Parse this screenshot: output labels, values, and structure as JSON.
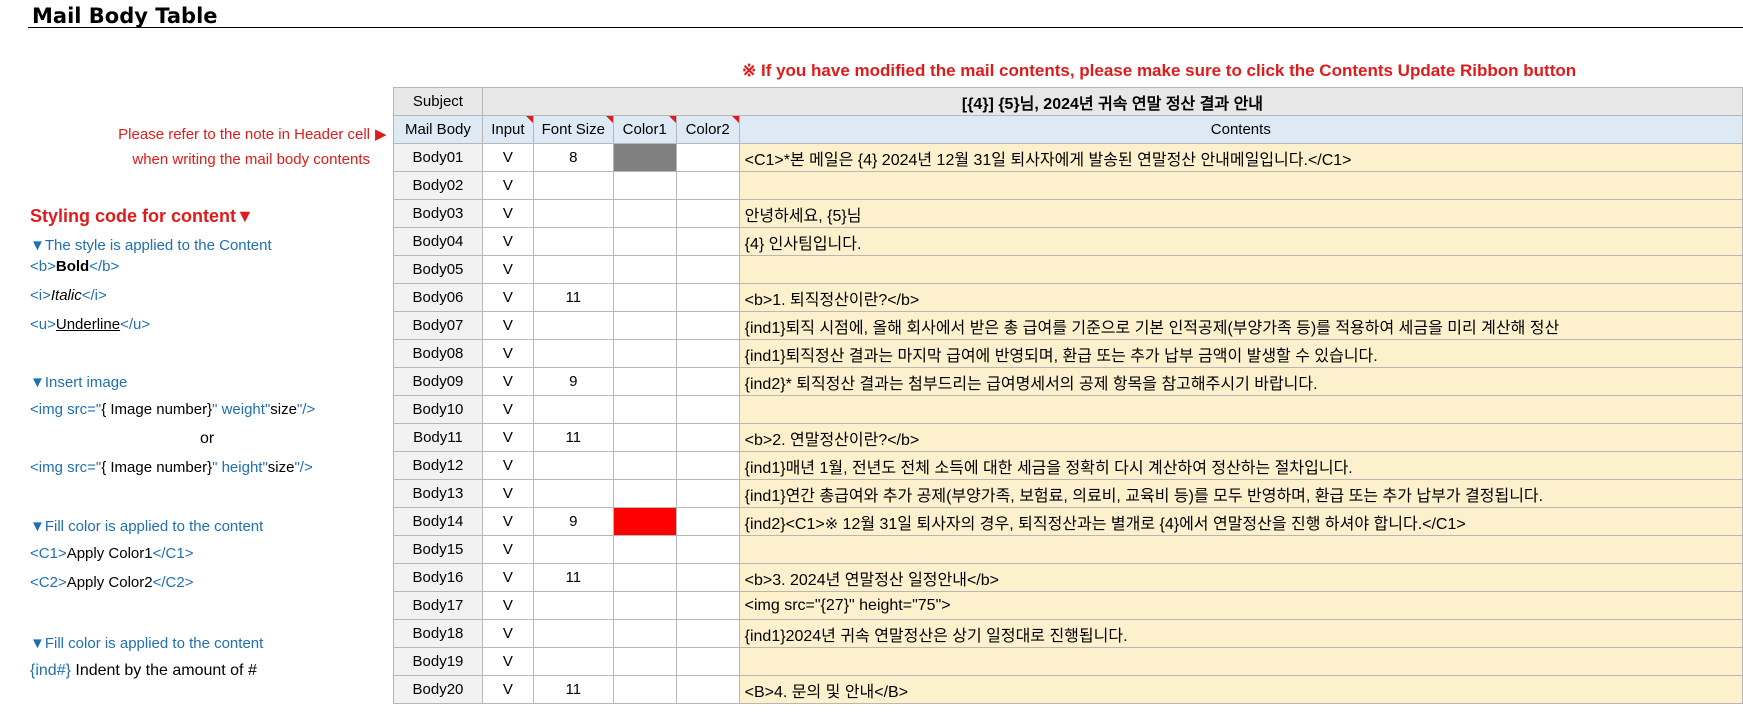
{
  "page": {
    "title": "Mail Body Table",
    "warning": "※  If you have modified the mail contents, please make sure to click the Contents Update Ribbon button",
    "note_line1": "Please refer to the note in Header cell",
    "note_line2": "when writing the mail body contents",
    "note_arrow": "▶"
  },
  "sidebar": {
    "styling_heading": "Styling code for content▼",
    "style_section": "▼The style is applied to the Content",
    "bold_open": "<b>",
    "bold_text": "Bold",
    "bold_close": "</b>",
    "italic_open": "<i>",
    "italic_text": "Italic",
    "italic_close": "</i>",
    "underline_open": "<u>",
    "underline_text": "Underline",
    "underline_close": "</u>",
    "image_section": "▼Insert image",
    "img_width_a": "<img src=\"",
    "img_width_b": "{ Image number}",
    "img_width_c": "\" weight\"",
    "img_width_d": "size",
    "img_width_e": "\"/>",
    "or_label": "or",
    "img_height_a": "<img src=\"",
    "img_height_b": "{ Image number}",
    "img_height_c": "\" height\"",
    "img_height_d": "size",
    "img_height_e": "\"/>",
    "fill_section": "▼Fill color is applied to the content",
    "c1_open": "<C1>",
    "c1_text": "Apply Color1",
    "c1_close": "</C1>",
    "c2_open": "<C2>",
    "c2_text": "Apply Color2",
    "c2_close": "</C2>",
    "indent_section": "▼Fill color is applied to the content",
    "indent_code": "{ind#}",
    "indent_text": " Indent by the amount of #"
  },
  "table": {
    "subject_label": "Subject",
    "subject_value": "[{4}] {5}님, 2024년 귀속 연말 정산 결과 안내",
    "headers": {
      "mail_body": "Mail Body",
      "input": "Input",
      "font_size": "Font Size",
      "color1": "Color1",
      "color2": "Color2",
      "contents": "Contents"
    },
    "rows": [
      {
        "name": "Body01",
        "input": "V",
        "font": "8",
        "c1": "#808080",
        "c2": "",
        "content": "<C1>*본 메일은 {4} 2024년 12월 31일 퇴사자에게 발송된 연말정산 안내메일입니다.</C1>"
      },
      {
        "name": "Body02",
        "input": "V",
        "font": "",
        "c1": "",
        "c2": "",
        "content": ""
      },
      {
        "name": "Body03",
        "input": "V",
        "font": "",
        "c1": "",
        "c2": "",
        "content": "안녕하세요, {5}님"
      },
      {
        "name": "Body04",
        "input": "V",
        "font": "",
        "c1": "",
        "c2": "",
        "content": "{4} 인사팀입니다."
      },
      {
        "name": "Body05",
        "input": "V",
        "font": "",
        "c1": "",
        "c2": "",
        "content": ""
      },
      {
        "name": "Body06",
        "input": "V",
        "font": "11",
        "c1": "",
        "c2": "",
        "content": "<b>1. 퇴직정산이란?</b>"
      },
      {
        "name": "Body07",
        "input": "V",
        "font": "",
        "c1": "",
        "c2": "",
        "content": "{ind1}퇴직 시점에, 올해 회사에서 받은 총 급여를 기준으로 기본 인적공제(부양가족 등)를 적용하여 세금을 미리 계산해 정산"
      },
      {
        "name": "Body08",
        "input": "V",
        "font": "",
        "c1": "",
        "c2": "",
        "content": "{ind1}퇴직정산 결과는 마지막 급여에 반영되며, 환급 또는 추가 납부 금액이 발생할 수 있습니다."
      },
      {
        "name": "Body09",
        "input": "V",
        "font": "9",
        "c1": "",
        "c2": "",
        "content": "{ind2}* 퇴직정산 결과는 첨부드리는 급여명세서의 공제 항목을 참고해주시기 바랍니다."
      },
      {
        "name": "Body10",
        "input": "V",
        "font": "",
        "c1": "",
        "c2": "",
        "content": ""
      },
      {
        "name": "Body11",
        "input": "V",
        "font": "11",
        "c1": "",
        "c2": "",
        "content": "<b>2. 연말정산이란?</b>"
      },
      {
        "name": "Body12",
        "input": "V",
        "font": "",
        "c1": "",
        "c2": "",
        "content": "{ind1}매년 1월, 전년도 전체 소득에 대한 세금을 정확히 다시 계산하여 정산하는 절차입니다."
      },
      {
        "name": "Body13",
        "input": "V",
        "font": "",
        "c1": "",
        "c2": "",
        "content": "{ind1}연간 총급여와 추가 공제(부양가족, 보험료, 의료비, 교육비 등)를 모두 반영하며, 환급 또는 추가 납부가 결정됩니다."
      },
      {
        "name": "Body14",
        "input": "V",
        "font": "9",
        "c1": "#ff0000",
        "c2": "",
        "content": "{ind2}<C1>※ 12월 31일 퇴사자의 경우, 퇴직정산과는 별개로 {4}에서 연말정산을 진행 하셔야 합니다.</C1>"
      },
      {
        "name": "Body15",
        "input": "V",
        "font": "",
        "c1": "",
        "c2": "",
        "content": ""
      },
      {
        "name": "Body16",
        "input": "V",
        "font": "11",
        "c1": "",
        "c2": "",
        "content": "<b>3. 2024년 연말정산 일정안내</b>"
      },
      {
        "name": "Body17",
        "input": "V",
        "font": "",
        "c1": "",
        "c2": "",
        "content": "<img src=\"{27}\" height=\"75\">"
      },
      {
        "name": "Body18",
        "input": "V",
        "font": "",
        "c1": "",
        "c2": "",
        "content": "{ind1}2024년 귀속 연말정산은 상기 일정대로 진행됩니다."
      },
      {
        "name": "Body19",
        "input": "V",
        "font": "",
        "c1": "",
        "c2": "",
        "content": ""
      },
      {
        "name": "Body20",
        "input": "V",
        "font": "11",
        "c1": "",
        "c2": "",
        "content": "<B>4. 문의 및 안내</B>"
      }
    ]
  }
}
